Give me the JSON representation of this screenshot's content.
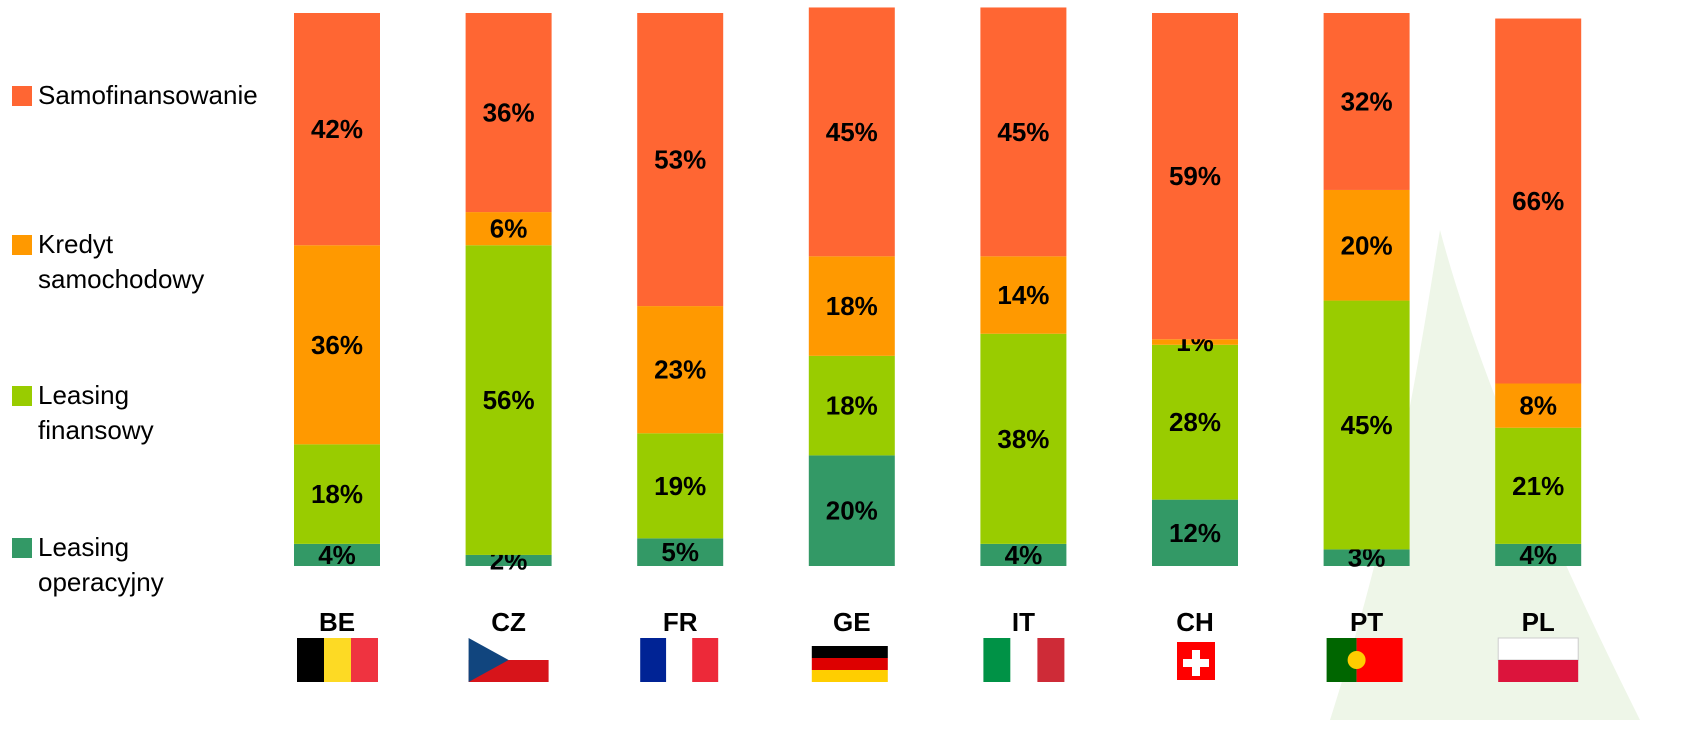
{
  "chart_data": {
    "type": "bar",
    "stacked": true,
    "categories": [
      "BE",
      "CZ",
      "FR",
      "GE",
      "IT",
      "CH",
      "PT",
      "PL"
    ],
    "series": [
      {
        "name": "Samofinansowanie",
        "color": "#ff6633",
        "values": [
          42,
          36,
          53,
          45,
          45,
          59,
          32,
          66
        ],
        "value_labels": [
          "42%",
          "36%",
          "53%",
          "45%",
          "45%",
          "59%",
          "32%",
          "66%"
        ]
      },
      {
        "name": "Kredyt samochodowy",
        "color": "#ff9900",
        "values": [
          36,
          6,
          23,
          18,
          14,
          1,
          20,
          8
        ],
        "value_labels": [
          "36%",
          "6%",
          "23%",
          "18%",
          "14%",
          "1%",
          "20%",
          "8%"
        ]
      },
      {
        "name": "Leasing finansowy",
        "color": "#99cc00",
        "values": [
          18,
          56,
          19,
          18,
          38,
          28,
          45,
          21
        ],
        "value_labels": [
          "18%",
          "56%",
          "19%",
          "18%",
          "38%",
          "28%",
          "45%",
          "21%"
        ]
      },
      {
        "name": "Leasing operacyjny",
        "color": "#339966",
        "values": [
          4,
          2,
          5,
          20,
          4,
          12,
          3,
          4
        ],
        "value_labels": [
          "4%",
          "2%",
          "5%",
          "20%",
          "4%",
          "12%",
          "3%",
          "4%"
        ]
      }
    ]
  }
}
